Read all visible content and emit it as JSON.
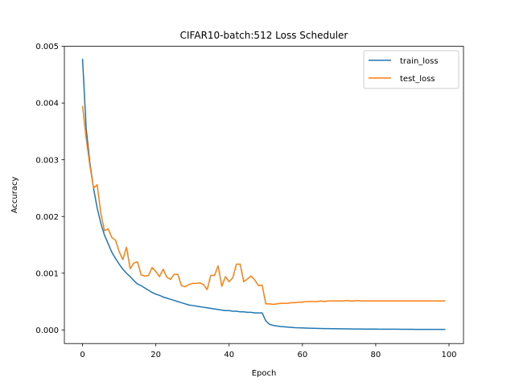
{
  "chart_data": {
    "type": "line",
    "title": "CIFAR10-batch:512 Loss Scheduler",
    "xlabel": "Epoch",
    "ylabel": "Accuracy",
    "xlim": [
      -4.95,
      103.95
    ],
    "ylim": [
      -0.00024,
      0.005
    ],
    "xticks": [
      0,
      20,
      40,
      60,
      80,
      100
    ],
    "yticks": [
      0.0,
      0.001,
      0.002,
      0.003,
      0.004,
      0.005
    ],
    "ytick_labels": [
      "0.000",
      "0.001",
      "0.002",
      "0.003",
      "0.004",
      "0.005"
    ],
    "legend_position": "top-right",
    "grid": false,
    "x": [
      0,
      1,
      2,
      3,
      4,
      5,
      6,
      7,
      8,
      9,
      10,
      11,
      12,
      13,
      14,
      15,
      16,
      17,
      18,
      19,
      20,
      21,
      22,
      23,
      24,
      25,
      26,
      27,
      28,
      29,
      30,
      31,
      32,
      33,
      34,
      35,
      36,
      37,
      38,
      39,
      40,
      41,
      42,
      43,
      44,
      45,
      46,
      47,
      48,
      49,
      50,
      51,
      52,
      53,
      54,
      55,
      56,
      57,
      58,
      59,
      60,
      61,
      62,
      63,
      64,
      65,
      66,
      67,
      68,
      69,
      70,
      71,
      72,
      73,
      74,
      75,
      76,
      77,
      78,
      79,
      80,
      81,
      82,
      83,
      84,
      85,
      86,
      87,
      88,
      89,
      90,
      91,
      92,
      93,
      94,
      95,
      96,
      97,
      98,
      99
    ],
    "series": [
      {
        "name": "train_loss",
        "color": "#1f77b4",
        "values": [
          0.00478,
          0.00355,
          0.00295,
          0.0025,
          0.00215,
          0.00188,
          0.00167,
          0.00152,
          0.00137,
          0.00126,
          0.00116,
          0.00107,
          0.001,
          0.00094,
          0.00087,
          0.00081,
          0.00078,
          0.00074,
          0.0007,
          0.00066,
          0.00063,
          0.00061,
          0.00058,
          0.00056,
          0.00054,
          0.00052,
          0.0005,
          0.00048,
          0.00046,
          0.00044,
          0.00043,
          0.00042,
          0.00041,
          0.0004,
          0.00039,
          0.00038,
          0.00037,
          0.00036,
          0.00035,
          0.00034,
          0.00034,
          0.00033,
          0.00033,
          0.00032,
          0.00032,
          0.00031,
          0.00031,
          0.0003,
          0.0003,
          0.0003,
          0.00016,
          0.0001,
          8e-05,
          7e-05,
          6e-05,
          5.5e-05,
          5e-05,
          4.5e-05,
          4e-05,
          3.8e-05,
          3.5e-05,
          3.3e-05,
          3e-05,
          2.8e-05,
          2.7e-05,
          2.5e-05,
          2.4e-05,
          2.3e-05,
          2.2e-05,
          2.1e-05,
          2e-05,
          1.9e-05,
          1.8e-05,
          1.8e-05,
          1.7e-05,
          1.6e-05,
          1.6e-05,
          1.5e-05,
          1.5e-05,
          1.4e-05,
          1.4e-05,
          1.3e-05,
          1.3e-05,
          1.3e-05,
          1.2e-05,
          1.2e-05,
          1.2e-05,
          1.1e-05,
          1.1e-05,
          1.1e-05,
          1.1e-05,
          1e-05,
          1e-05,
          1e-05,
          1e-05,
          1e-05,
          1e-05,
          1e-05,
          1e-05,
          1e-05
        ]
      },
      {
        "name": "test_loss",
        "color": "#ff7f0e",
        "values": [
          0.00395,
          0.00338,
          0.0029,
          0.0025,
          0.00256,
          0.00205,
          0.00175,
          0.00178,
          0.00163,
          0.00158,
          0.00138,
          0.00124,
          0.00146,
          0.00108,
          0.00118,
          0.0012,
          0.00097,
          0.00095,
          0.00096,
          0.0011,
          0.00103,
          0.00094,
          0.00107,
          0.00093,
          0.00089,
          0.00098,
          0.00098,
          0.00078,
          0.00076,
          0.0008,
          0.00082,
          0.00082,
          0.00083,
          0.0008,
          0.00071,
          0.00096,
          0.00096,
          0.00113,
          0.00077,
          0.00094,
          0.00085,
          0.00092,
          0.00116,
          0.00116,
          0.00085,
          0.0009,
          0.00095,
          0.00088,
          0.00078,
          0.00079,
          0.00046,
          0.00046,
          0.00045,
          0.00046,
          0.00047,
          0.00047,
          0.00047,
          0.00048,
          0.00048,
          0.00049,
          0.00049,
          0.0005,
          0.0005,
          0.0005,
          0.0005,
          0.00051,
          0.0005,
          0.00051,
          0.00051,
          0.00051,
          0.00051,
          0.00051,
          0.00052,
          0.00051,
          0.00051,
          0.00052,
          0.00051,
          0.00051,
          0.00051,
          0.00051,
          0.00051,
          0.00051,
          0.00051,
          0.00051,
          0.00051,
          0.00051,
          0.00051,
          0.00051,
          0.00051,
          0.00051,
          0.00051,
          0.00051,
          0.00051,
          0.00051,
          0.00051,
          0.00051,
          0.00051,
          0.00051,
          0.00051,
          0.00051
        ]
      }
    ]
  }
}
